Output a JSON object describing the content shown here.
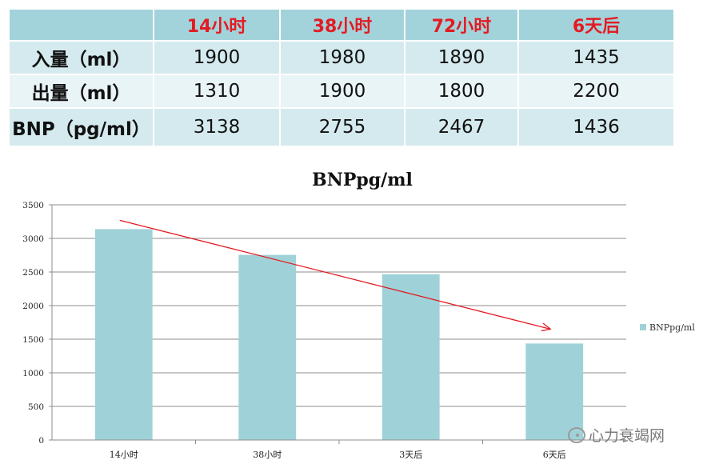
{
  "table": {
    "headers": [
      "",
      "14小时",
      "38小时",
      "72小时",
      "6天后"
    ],
    "rows": [
      {
        "label": "入量（ml）",
        "values": [
          "1900",
          "1980",
          "1890",
          "1435"
        ]
      },
      {
        "label": "出量（ml）",
        "values": [
          "1310",
          "1900",
          "1800",
          "2200"
        ]
      },
      {
        "label": "BNP（pg/ml）",
        "values": [
          "3138",
          "2755",
          "2467",
          "1436"
        ]
      }
    ]
  },
  "chart_data": {
    "type": "bar",
    "title": "BNPpg/ml",
    "categories": [
      "14小时",
      "38小时",
      "3天后",
      "6天后"
    ],
    "series": [
      {
        "name": "BNPpg/ml",
        "values": [
          3138,
          2755,
          2467,
          1436
        ],
        "color": "#9fd2d8"
      }
    ],
    "ylim": [
      0,
      3500
    ],
    "yticks": [
      0,
      500,
      1000,
      1500,
      2000,
      2500,
      3000,
      3500
    ],
    "grid": true,
    "legend_position": "right",
    "annotations": [
      {
        "type": "arrow",
        "from": {
          "x": "14小时",
          "y": 3270
        },
        "to": {
          "x": "6天后",
          "y": 1650
        },
        "color": "#e31b23"
      }
    ]
  },
  "watermark": {
    "text": "心力衰竭网",
    "icon": "wechat-icon"
  }
}
